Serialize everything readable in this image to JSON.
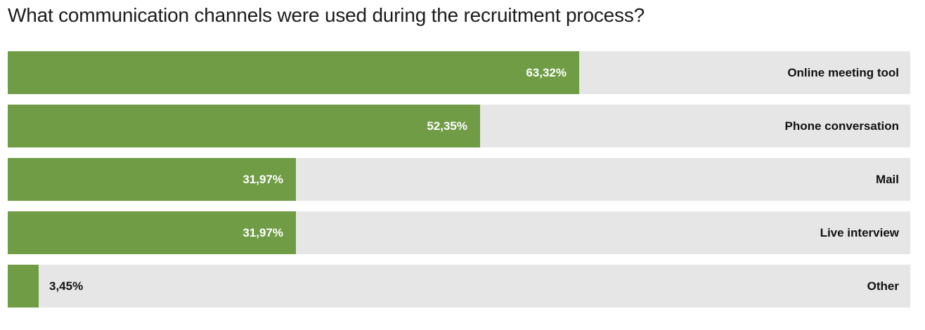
{
  "chart_data": {
    "type": "bar",
    "orientation": "horizontal",
    "title": "What communication channels were used during the recruitment process?",
    "categories": [
      "Online meeting tool",
      "Phone conversation",
      "Mail",
      "Live interview",
      "Other"
    ],
    "values": [
      63.32,
      52.35,
      31.97,
      31.97,
      3.45
    ],
    "value_labels": [
      "63,32%",
      "52,35%",
      "31,97%",
      "31,97%",
      "3,45%"
    ],
    "xlim": [
      0,
      100
    ],
    "grid": false,
    "legend": "none",
    "colors": {
      "bar": "#6f9c45",
      "track": "#e6e6e6"
    }
  }
}
